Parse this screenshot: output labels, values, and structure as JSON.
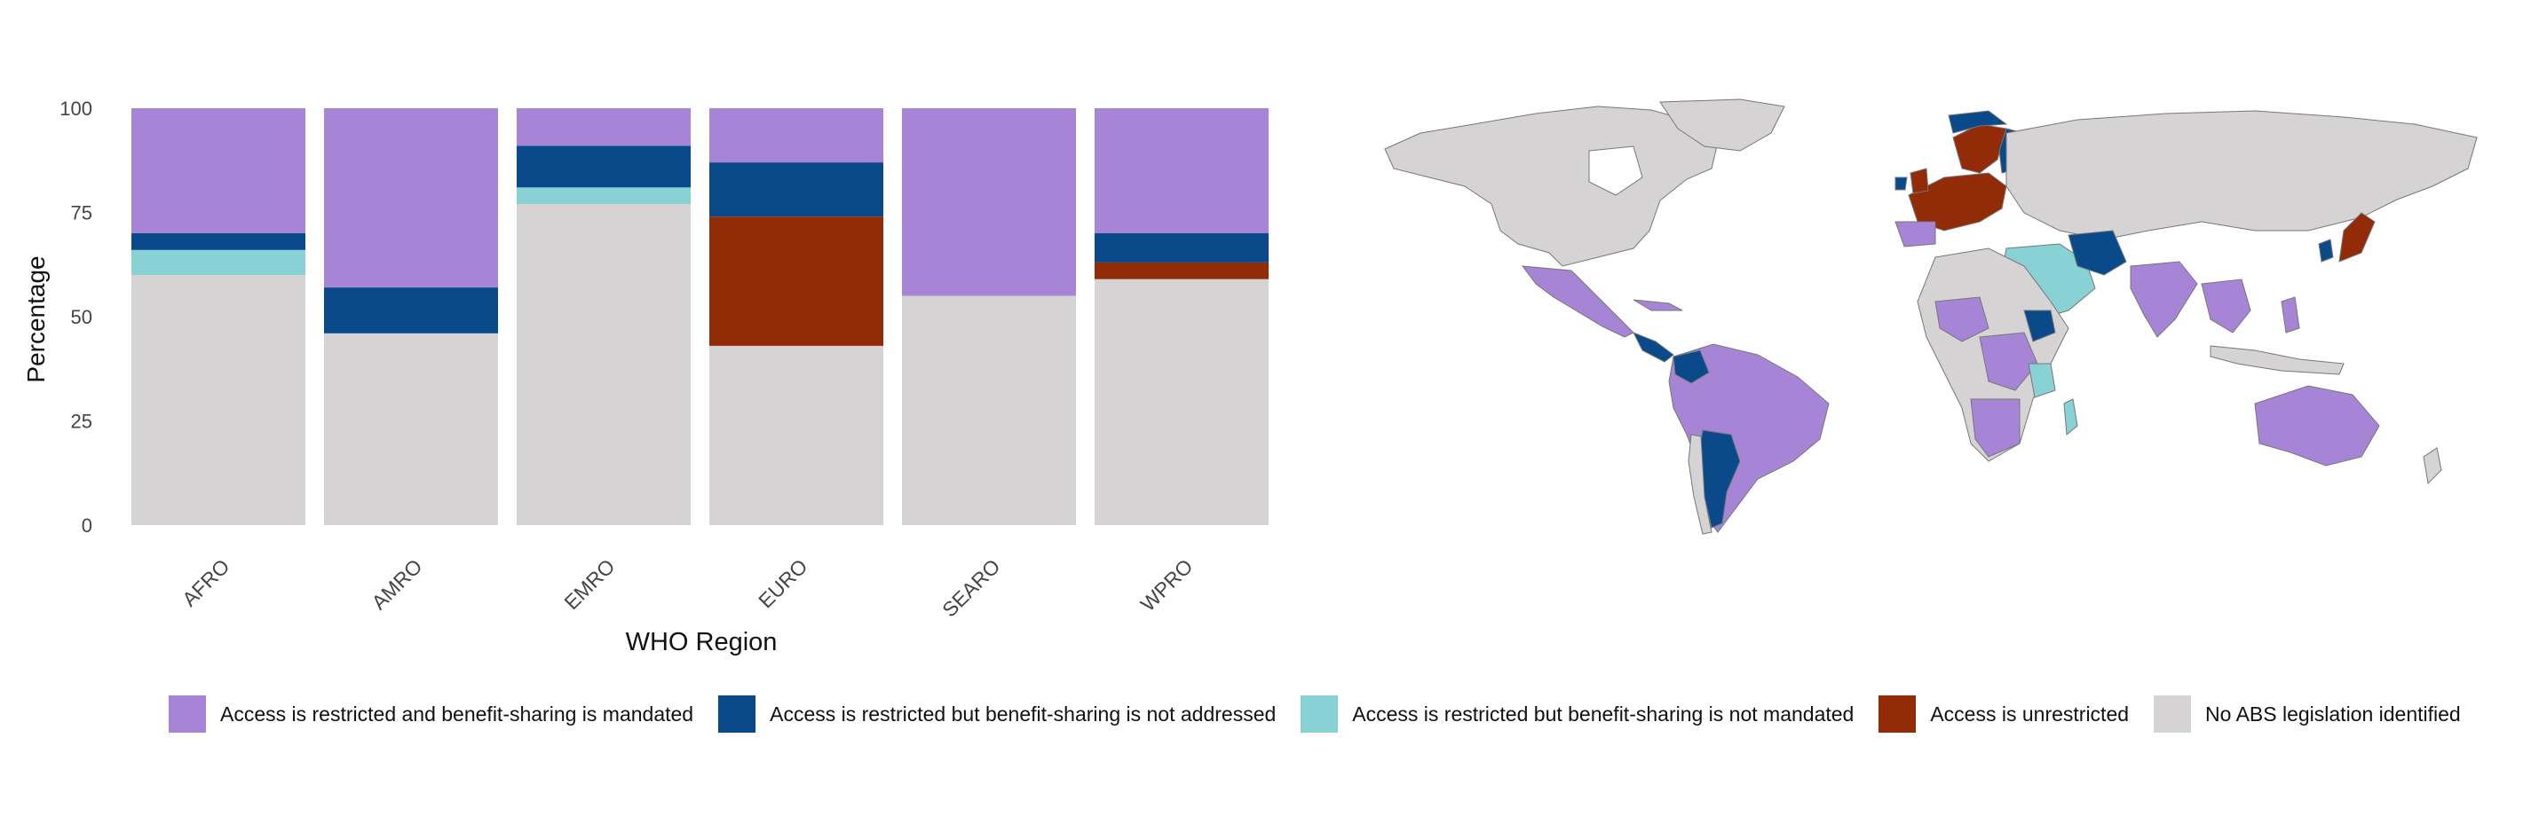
{
  "chart_data": {
    "type": "bar",
    "stacked": true,
    "xlabel": "WHO Region",
    "ylabel": "Percentage",
    "ylim": [
      0,
      100
    ],
    "yticks": [
      0,
      25,
      50,
      75,
      100
    ],
    "grid": false,
    "legend_position": "bottom",
    "categories": [
      "AFRO",
      "AMRO",
      "EMRO",
      "EURO",
      "SEARO",
      "WPRO"
    ],
    "series": [
      {
        "name": "No ABS legislation identified",
        "color": "#d5d3d4",
        "values": [
          60,
          46,
          77,
          43,
          55,
          59
        ]
      },
      {
        "name": "Access is unrestricted",
        "color": "#922b07",
        "values": [
          0,
          0,
          0,
          31,
          0,
          4
        ]
      },
      {
        "name": "Access is restricted but benefit-sharing is not mandated",
        "color": "#88d1d4",
        "values": [
          6,
          0,
          4,
          0,
          0,
          0
        ]
      },
      {
        "name": "Access is restricted but benefit-sharing is not addressed",
        "color": "#0a4a8a",
        "values": [
          4,
          11,
          10,
          13,
          0,
          7
        ]
      },
      {
        "name": "Access is restricted and benefit-sharing is mandated",
        "color": "#a684d6",
        "values": [
          30,
          43,
          9,
          13,
          45,
          30
        ]
      }
    ]
  },
  "legend": {
    "items": [
      {
        "label": "Access is restricted and benefit-sharing is mandated",
        "color": "#a684d6"
      },
      {
        "label": "Access is restricted but benefit-sharing is not addressed",
        "color": "#0a4a8a"
      },
      {
        "label": "Access is restricted but benefit-sharing is not mandated",
        "color": "#88d1d4"
      },
      {
        "label": "Access is unrestricted",
        "color": "#922b07"
      },
      {
        "label": "No ABS legislation identified",
        "color": "#d5d3d4"
      }
    ]
  }
}
